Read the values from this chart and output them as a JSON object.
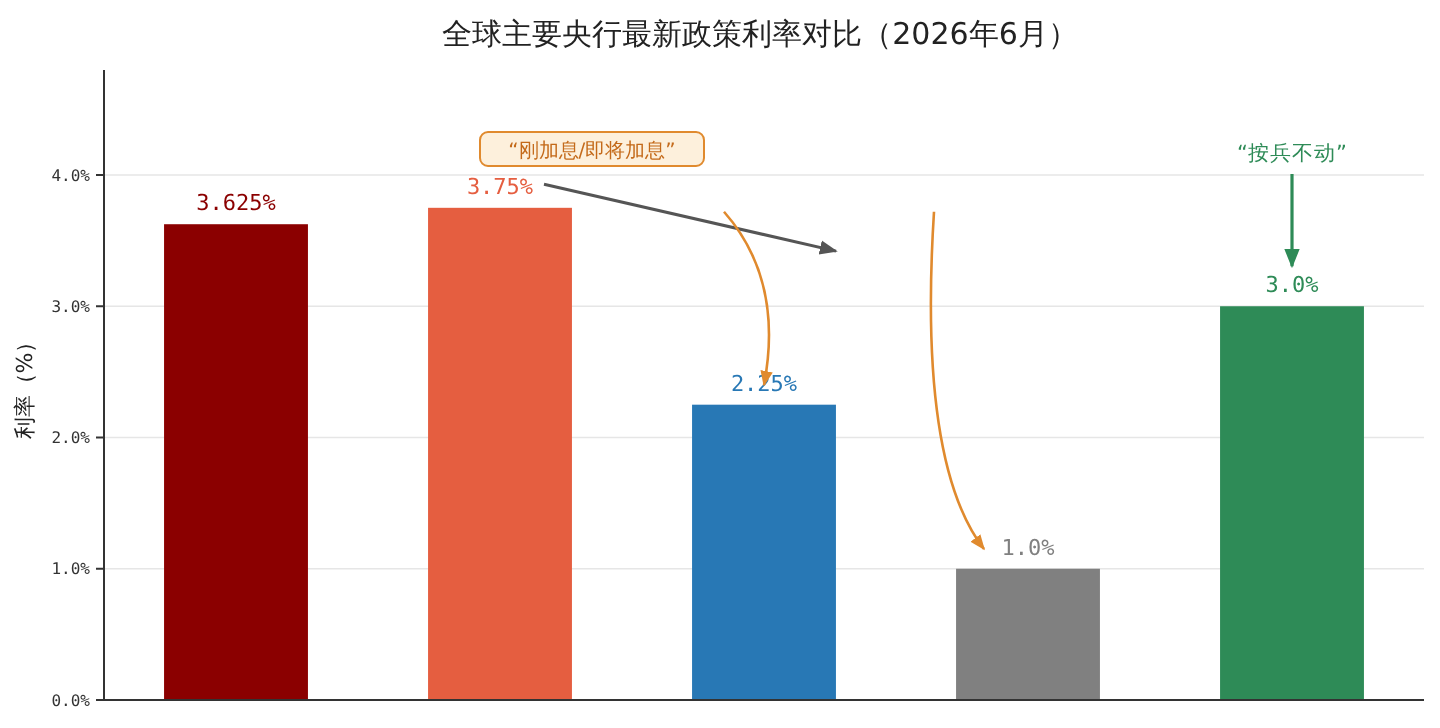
{
  "chart_data": {
    "type": "bar",
    "title": "全球主要央行最新政策利率对比（2026年6月）",
    "ylabel": "利率（%）",
    "categories": [
      null,
      null,
      null,
      null,
      null
    ],
    "values": [
      3.625,
      3.75,
      2.25,
      1.0,
      3.0
    ],
    "colors": [
      "#8b0000",
      "#e55e40",
      "#2878b5",
      "#808080",
      "#2e8b57"
    ],
    "value_labels": [
      "3.625%",
      "3.75%",
      "2.25%",
      "1.0%",
      "3.0%"
    ],
    "ylim": [
      0,
      4.8
    ],
    "yticks": [
      {
        "value": 0,
        "label": "0.0%"
      },
      {
        "value": 1,
        "label": "1.0%"
      },
      {
        "value": 2,
        "label": "2.0%"
      },
      {
        "value": 3,
        "label": "3.0%"
      },
      {
        "value": 4,
        "label": "4.0%"
      }
    ],
    "grid": "y",
    "annotations": [
      "“刚加息/即将加息”",
      "“按兵不动”"
    ]
  }
}
